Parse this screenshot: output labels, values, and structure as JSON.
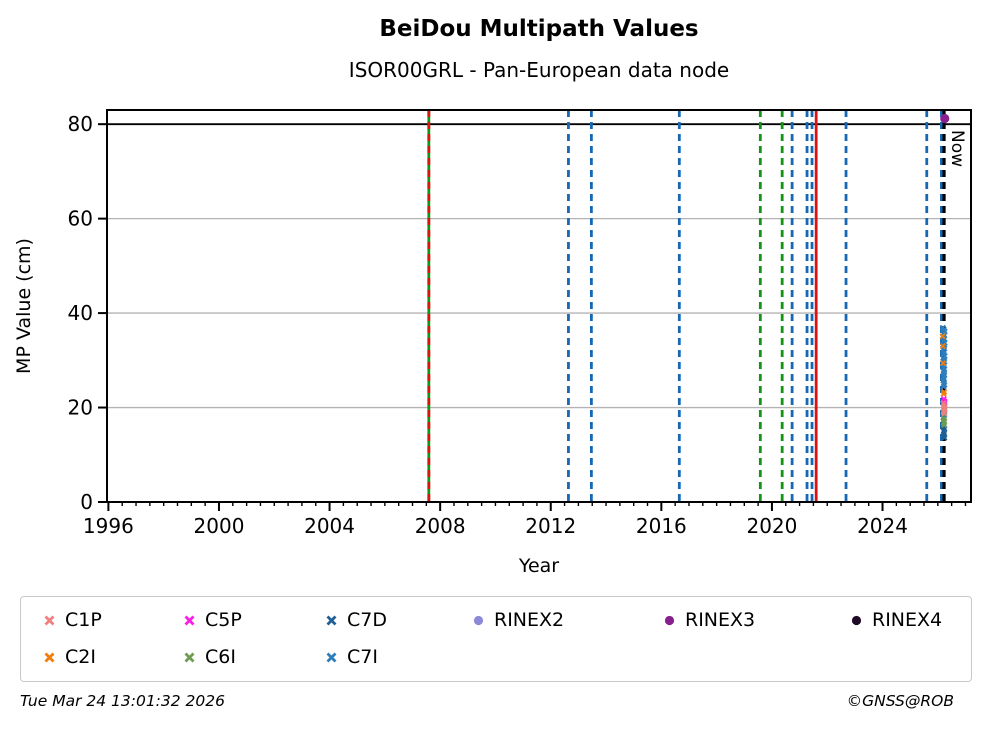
{
  "header": {
    "title": "BeiDou Multipath Values",
    "subtitle": "ISOR00GRL - Pan-European data node"
  },
  "footer": {
    "timestamp": "Tue Mar 24 13:01:32 2026",
    "copyright": "©GNSS@ROB"
  },
  "chart_data": {
    "type": "scatter",
    "title": "BeiDou Multipath Values",
    "subtitle": "ISOR00GRL - Pan-European data node",
    "xlabel": "Year",
    "ylabel": "MP Value (cm)",
    "xlim": [
      1995.95,
      2027.2
    ],
    "ylim": [
      0,
      83
    ],
    "xticks_major": [
      1996,
      2000,
      2004,
      2008,
      2012,
      2016,
      2020,
      2024
    ],
    "xtick_minor_step": 0.5,
    "yticks": [
      0,
      20,
      40,
      60,
      80
    ],
    "gridlines_y": [
      20,
      40,
      60
    ],
    "grid_color": "#b3b3b3",
    "hline": {
      "y": 80,
      "color": "#000000"
    },
    "now_line": {
      "year": 2026.225,
      "label": "Now",
      "color": "#000000",
      "style": "dashed"
    },
    "event_lines": [
      {
        "year": 2007.59,
        "color": "#149414",
        "style": "solid"
      },
      {
        "year": 2007.59,
        "color": "#dd1111",
        "style": "dashed"
      },
      {
        "year": 2012.64,
        "color": "#1668b5",
        "style": "dashed"
      },
      {
        "year": 2013.47,
        "color": "#1668b5",
        "style": "dashed"
      },
      {
        "year": 2016.65,
        "color": "#1668b5",
        "style": "dashed"
      },
      {
        "year": 2019.58,
        "color": "#149414",
        "style": "dashed"
      },
      {
        "year": 2020.37,
        "color": "#149414",
        "style": "dashed"
      },
      {
        "year": 2020.73,
        "color": "#1668b5",
        "style": "dashed"
      },
      {
        "year": 2021.27,
        "color": "#1668b5",
        "style": "dashed"
      },
      {
        "year": 2021.45,
        "color": "#1668b5",
        "style": "dashed"
      },
      {
        "year": 2021.6,
        "color": "#dd1111",
        "style": "solid"
      },
      {
        "year": 2022.68,
        "color": "#1668b5",
        "style": "dashed"
      },
      {
        "year": 2025.6,
        "color": "#1668b5",
        "style": "dashed"
      },
      {
        "year": 2026.13,
        "color": "#1668b5",
        "style": "dashed"
      }
    ],
    "legend": [
      {
        "label": "C1P",
        "color": "#f08080",
        "marker": "x",
        "col": 0,
        "row": 0
      },
      {
        "label": "C2I",
        "color": "#f07d0c",
        "marker": "x",
        "col": 0,
        "row": 1
      },
      {
        "label": "C5P",
        "color": "#fb1fe4",
        "marker": "x",
        "col": 1,
        "row": 0
      },
      {
        "label": "C6I",
        "color": "#6d9c52",
        "marker": "x",
        "col": 1,
        "row": 1
      },
      {
        "label": "C7D",
        "color": "#1f5f99",
        "marker": "x",
        "col": 2,
        "row": 0
      },
      {
        "label": "C7I",
        "color": "#2e7ebc",
        "marker": "x",
        "col": 2,
        "row": 1
      },
      {
        "label": "RINEX2",
        "color": "#8e88d8",
        "marker": "circle",
        "col": 3,
        "row": 0
      },
      {
        "label": "RINEX3",
        "color": "#871f8e",
        "marker": "circle",
        "col": 4,
        "row": 0
      },
      {
        "label": "RINEX4",
        "color": "#200b26",
        "marker": "circle",
        "col": 5,
        "row": 0
      }
    ],
    "series": [
      {
        "name": "C7I",
        "color": "#2e7ebc",
        "marker": "x",
        "points": [
          [
            2026.18,
            36.9
          ],
          [
            2026.22,
            36.5
          ],
          [
            2026.25,
            36.1
          ],
          [
            2026.2,
            35.7
          ],
          [
            2026.24,
            35.3
          ],
          [
            2026.19,
            34.9
          ],
          [
            2026.23,
            34.5
          ],
          [
            2026.21,
            34.1
          ],
          [
            2026.25,
            33.7
          ],
          [
            2026.19,
            33.3
          ],
          [
            2026.22,
            32.9
          ],
          [
            2026.24,
            32.5
          ],
          [
            2026.2,
            32.1
          ],
          [
            2026.23,
            31.7
          ],
          [
            2026.21,
            31.3
          ],
          [
            2026.25,
            30.9
          ],
          [
            2026.19,
            30.5
          ],
          [
            2026.22,
            30.1
          ],
          [
            2026.24,
            29.7
          ],
          [
            2026.2,
            29.3
          ],
          [
            2026.23,
            28.9
          ],
          [
            2026.21,
            28.5
          ],
          [
            2026.24,
            28.1
          ],
          [
            2026.2,
            27.7
          ],
          [
            2026.22,
            27.3
          ],
          [
            2026.24,
            26.9
          ],
          [
            2026.21,
            26.5
          ],
          [
            2026.23,
            26.1
          ],
          [
            2026.2,
            25.7
          ],
          [
            2026.22,
            25.2
          ],
          [
            2026.24,
            24.8
          ],
          [
            2026.21,
            24.4
          ],
          [
            2026.23,
            19.5
          ],
          [
            2026.21,
            19.0
          ],
          [
            2026.24,
            18.4
          ],
          [
            2026.22,
            17.8
          ],
          [
            2026.2,
            17.2
          ]
        ]
      },
      {
        "name": "C7D",
        "color": "#1f5f99",
        "marker": "x",
        "points": [
          [
            2026.2,
            16.4
          ],
          [
            2026.22,
            16.0
          ],
          [
            2026.24,
            15.5
          ],
          [
            2026.21,
            15.0
          ],
          [
            2026.23,
            14.5
          ],
          [
            2026.22,
            14.0
          ],
          [
            2026.24,
            13.6
          ]
        ]
      },
      {
        "name": "C2I",
        "color": "#f07d0c",
        "marker": "x",
        "points": [
          [
            2026.17,
            35.1
          ],
          [
            2026.18,
            33.0
          ],
          [
            2026.19,
            29.4
          ],
          [
            2026.23,
            23.3
          ],
          [
            2026.21,
            22.9
          ]
        ]
      },
      {
        "name": "C5P",
        "color": "#fb1fe4",
        "marker": "x",
        "points": [
          [
            2026.22,
            21.8
          ],
          [
            2026.24,
            21.3
          ],
          [
            2026.21,
            20.9
          ],
          [
            2026.23,
            20.4
          ],
          [
            2026.25,
            21.0
          ]
        ]
      },
      {
        "name": "C6I",
        "color": "#6d9c52",
        "marker": "x",
        "points": [
          [
            2026.22,
            20.0
          ],
          [
            2026.24,
            19.5
          ],
          [
            2026.21,
            19.0
          ],
          [
            2026.23,
            18.6
          ],
          [
            2026.22,
            17.6
          ],
          [
            2026.24,
            17.1
          ],
          [
            2026.21,
            16.7
          ],
          [
            2026.23,
            16.3
          ]
        ]
      },
      {
        "name": "C1P",
        "color": "#f08080",
        "marker": "x",
        "points": [
          [
            2026.2,
            20.9
          ],
          [
            2026.23,
            20.3
          ],
          [
            2026.25,
            19.8
          ],
          [
            2026.21,
            19.2
          ],
          [
            2026.24,
            18.8
          ]
        ]
      },
      {
        "name": "RINEX2",
        "color": "#8e88d8",
        "marker": "circle",
        "points": []
      },
      {
        "name": "RINEX3",
        "color": "#871f8e",
        "marker": "circle",
        "points": [
          [
            2026.25,
            81.2
          ]
        ]
      },
      {
        "name": "RINEX4",
        "color": "#200b26",
        "marker": "circle",
        "points": []
      }
    ]
  }
}
